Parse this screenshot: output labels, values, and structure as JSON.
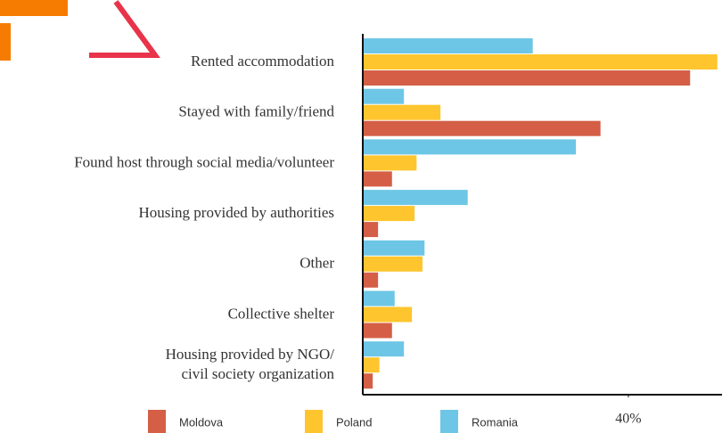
{
  "chart_data": {
    "type": "barh",
    "categories": [
      "Rented accommodation",
      "Stayed with family/friend",
      "Found host through social media/volunteer",
      "Housing provided by authorities",
      "Other",
      "Collective shelter",
      [
        "Housing provided by NGO/",
        "civil society organization"
      ]
    ],
    "series": [
      {
        "name": "Romania",
        "color": "#6ec6e6",
        "values": [
          25.6,
          6.2,
          32.1,
          15.8,
          9.3,
          4.8,
          6.2
        ]
      },
      {
        "name": "Poland",
        "color": "#fec52e",
        "values": [
          53.4,
          11.7,
          8.1,
          7.8,
          9.0,
          7.4,
          2.5
        ]
      },
      {
        "name": "Moldova",
        "color": "#d45f46",
        "values": [
          49.3,
          35.8,
          4.4,
          2.3,
          2.3,
          4.4,
          1.5
        ]
      }
    ],
    "legend_order": [
      "Moldova",
      "Poland",
      "Romania"
    ],
    "xlim": [
      0,
      54.1
    ],
    "xticks": [
      {
        "value": 40,
        "label": "40%"
      }
    ],
    "grid": false
  }
}
